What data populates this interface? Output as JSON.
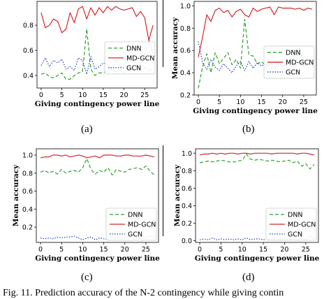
{
  "subfig_labels": [
    "(a)",
    "(b)",
    "(c)",
    "(d)"
  ],
  "figure_caption": "Fig. 11.   Prediction accuracy of the N-2 contingency while giving contin",
  "chart_data": [
    {
      "type": "line",
      "xlabel": "Giving contingency power line",
      "ylabel": "",
      "xlim": [
        -1,
        28
      ],
      "ylim": [
        0.3,
        0.99
      ],
      "xticks": [
        0,
        5,
        10,
        15,
        20,
        25
      ],
      "yticks": [
        0.4,
        0.6,
        0.8
      ],
      "grid": false,
      "legend_position": "center-right",
      "x": [
        0,
        1,
        2,
        3,
        4,
        5,
        6,
        7,
        8,
        9,
        10,
        11,
        12,
        13,
        14,
        15,
        16,
        17,
        18,
        19,
        20,
        21,
        22,
        23,
        24,
        25,
        26,
        27
      ],
      "series": [
        {
          "name": "DNN",
          "color": "#2ca02c",
          "dash": "5,3",
          "values": [
            0.41,
            0.42,
            0.39,
            0.38,
            0.4,
            0.42,
            0.37,
            0.37,
            0.4,
            0.42,
            0.43,
            0.77,
            0.45,
            0.4,
            0.42,
            0.42,
            0.44,
            0.45,
            0.43,
            0.44,
            0.42,
            0.46,
            0.45,
            0.44,
            0.45,
            0.46,
            0.44,
            0.45
          ]
        },
        {
          "name": "MD-GCN",
          "color": "#d62728",
          "dash": "",
          "values": [
            0.9,
            0.78,
            0.8,
            0.85,
            0.83,
            0.74,
            0.77,
            0.9,
            0.82,
            0.93,
            0.95,
            0.85,
            0.94,
            0.88,
            0.94,
            0.9,
            0.95,
            0.92,
            0.95,
            0.93,
            0.92,
            0.93,
            0.94,
            0.87,
            0.91,
            0.86,
            0.68,
            0.8
          ]
        },
        {
          "name": "GCN",
          "color": "#1f3cbf",
          "dash": "1.5,2",
          "values": [
            0.48,
            0.54,
            0.47,
            0.52,
            0.5,
            0.53,
            0.45,
            0.47,
            0.44,
            0.54,
            0.52,
            0.41,
            0.55,
            0.45,
            0.47,
            0.5,
            0.49,
            0.44,
            0.52,
            0.48,
            0.46,
            0.55,
            0.52,
            0.48,
            0.6,
            0.56,
            0.68,
            0.58
          ]
        }
      ]
    },
    {
      "type": "line",
      "xlabel": "Giving contingency power line",
      "ylabel": "Mean accuracy",
      "xlim": [
        -1,
        28
      ],
      "ylim": [
        0.2,
        1.04
      ],
      "xticks": [
        0,
        5,
        10,
        15,
        20,
        25
      ],
      "yticks": [
        0.2,
        0.4,
        0.6,
        0.8,
        1.0
      ],
      "grid": false,
      "legend_position": "center-right",
      "x": [
        0,
        1,
        2,
        3,
        4,
        5,
        6,
        7,
        8,
        9,
        10,
        11,
        12,
        13,
        14,
        15,
        16,
        17,
        18,
        19,
        20,
        21,
        22,
        23,
        24,
        25,
        26,
        27
      ],
      "series": [
        {
          "name": "DNN",
          "color": "#2ca02c",
          "dash": "5,3",
          "values": [
            0.26,
            0.45,
            0.57,
            0.4,
            0.58,
            0.48,
            0.53,
            0.58,
            0.47,
            0.52,
            0.44,
            0.88,
            0.56,
            0.55,
            0.48,
            0.5,
            0.46,
            0.47,
            0.43,
            0.5,
            0.45,
            0.48,
            0.5,
            0.47,
            0.63,
            0.45,
            0.47,
            0.5
          ]
        },
        {
          "name": "MD-GCN",
          "color": "#d62728",
          "dash": "",
          "values": [
            0.54,
            0.72,
            0.92,
            0.86,
            0.96,
            0.98,
            0.94,
            0.96,
            0.9,
            0.95,
            0.97,
            0.92,
            0.9,
            0.98,
            0.95,
            0.97,
            0.98,
            0.99,
            0.92,
            0.99,
            0.98,
            0.98,
            0.98,
            0.97,
            0.98,
            0.96,
            0.98,
            0.97
          ]
        },
        {
          "name": "GCN",
          "color": "#1f3cbf",
          "dash": "1.5,2",
          "values": [
            0.68,
            0.49,
            0.43,
            0.52,
            0.45,
            0.42,
            0.48,
            0.44,
            0.4,
            0.46,
            0.5,
            0.42,
            0.5,
            0.44,
            0.49,
            0.46,
            0.48,
            0.47,
            0.5,
            0.46,
            0.48,
            0.47,
            0.5,
            0.46,
            0.49,
            0.47,
            0.48,
            0.47
          ]
        }
      ]
    },
    {
      "type": "line",
      "xlabel": "Giving contingency power line",
      "ylabel": "Mean accuracy",
      "xlim": [
        -1,
        28
      ],
      "ylim": [
        0.03,
        1.07
      ],
      "xticks": [
        0,
        5,
        10,
        15,
        20,
        25
      ],
      "yticks": [
        0.2,
        0.4,
        0.6,
        0.8,
        1.0
      ],
      "grid": false,
      "legend_position": "lower-right",
      "x": [
        0,
        1,
        2,
        3,
        4,
        5,
        6,
        7,
        8,
        9,
        10,
        11,
        12,
        13,
        14,
        15,
        16,
        17,
        18,
        19,
        20,
        21,
        22,
        23,
        24,
        25,
        26,
        27
      ],
      "series": [
        {
          "name": "DNN",
          "color": "#2ca02c",
          "dash": "5,3",
          "values": [
            0.81,
            0.83,
            0.8,
            0.82,
            0.79,
            0.84,
            0.8,
            0.82,
            0.83,
            0.81,
            0.86,
            0.96,
            0.84,
            0.79,
            0.83,
            0.81,
            0.86,
            0.78,
            0.84,
            0.82,
            0.81,
            0.84,
            0.85,
            0.86,
            0.84,
            0.88,
            0.82,
            0.78
          ]
        },
        {
          "name": "MD-GCN",
          "color": "#d62728",
          "dash": "",
          "values": [
            0.97,
            0.98,
            0.98,
            1.0,
            1.0,
            0.99,
            1.0,
            0.98,
            0.99,
            1.0,
            0.99,
            0.97,
            0.98,
            0.99,
            0.97,
            1.0,
            1.0,
            1.0,
            0.99,
            0.99,
            1.0,
            1.0,
            0.99,
            0.99,
            0.99,
            1.0,
            0.99,
            0.98
          ]
        },
        {
          "name": "GCN",
          "color": "#1f3cbf",
          "dash": "1.5,2",
          "values": [
            0.08,
            0.07,
            0.08,
            0.07,
            0.09,
            0.08,
            0.09,
            0.09,
            0.1,
            0.08,
            0.06,
            0.08,
            0.09,
            0.06,
            0.08,
            0.07,
            0.06,
            0.09,
            0.08,
            0.07,
            0.08,
            0.09,
            0.07,
            0.08,
            0.08,
            0.08,
            0.1,
            0.09
          ]
        }
      ]
    },
    {
      "type": "line",
      "xlabel": "Giving contingency power line",
      "ylabel": "Mean accuracy",
      "xlim": [
        -1,
        28
      ],
      "ylim": [
        -0.02,
        1.05
      ],
      "xticks": [
        0,
        5,
        10,
        15,
        20,
        25
      ],
      "yticks": [
        0.0,
        0.2,
        0.4,
        0.6,
        0.8,
        1.0
      ],
      "grid": false,
      "legend_position": "lower-right",
      "x": [
        0,
        1,
        2,
        3,
        4,
        5,
        6,
        7,
        8,
        9,
        10,
        11,
        12,
        13,
        14,
        15,
        16,
        17,
        18,
        19,
        20,
        21,
        22,
        23,
        24,
        25,
        26,
        27
      ],
      "series": [
        {
          "name": "DNN",
          "color": "#2ca02c",
          "dash": "5,3",
          "values": [
            0.89,
            0.9,
            0.91,
            0.9,
            0.91,
            0.92,
            0.91,
            0.9,
            0.9,
            0.91,
            0.92,
            0.99,
            0.93,
            0.92,
            0.93,
            0.92,
            0.91,
            0.92,
            0.91,
            0.9,
            0.91,
            0.92,
            0.89,
            0.91,
            0.85,
            0.88,
            0.82,
            0.87
          ]
        },
        {
          "name": "MD-GCN",
          "color": "#d62728",
          "dash": "",
          "values": [
            0.98,
            0.99,
            0.99,
            1.0,
            0.99,
            1.0,
            0.99,
            1.0,
            1.0,
            0.99,
            1.0,
            1.0,
            0.99,
            1.0,
            1.0,
            1.0,
            1.0,
            0.99,
            1.0,
            1.0,
            1.0,
            1.0,
            1.0,
            0.99,
            1.0,
            1.0,
            0.99,
            0.98
          ]
        },
        {
          "name": "GCN",
          "color": "#1f3cbf",
          "dash": "1.5,2",
          "values": [
            0.01,
            0.02,
            0.01,
            0.03,
            0.01,
            0.02,
            0.01,
            0.02,
            0.01,
            0.02,
            0.01,
            0.03,
            0.01,
            0.02,
            0.02,
            0.01,
            0.02,
            0.01,
            0.02,
            0.01,
            0.03,
            0.01,
            0.02,
            0.01,
            0.02,
            0.01,
            0.05,
            0.02
          ]
        }
      ]
    }
  ]
}
